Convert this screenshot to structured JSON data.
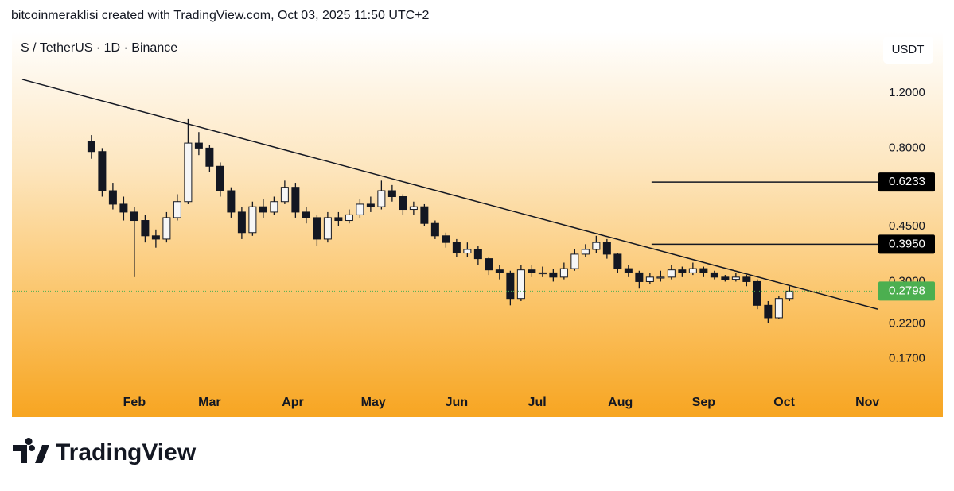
{
  "header": {
    "attribution": "bitcoinmeraklisi created with TradingView.com, Oct 03, 2025 11:50 UTC+2"
  },
  "chart_data": {
    "type": "candlestick",
    "title": "S / TetherUS · 1D · Binance",
    "currency": "USDT",
    "log_scale": true,
    "color": "#131722",
    "x": [
      15,
      19,
      23,
      27,
      31,
      35,
      39,
      43,
      47,
      51,
      55,
      59,
      63,
      67,
      71,
      75,
      79,
      83,
      87,
      91,
      95,
      99,
      103,
      107,
      111,
      115,
      119,
      123,
      127,
      131,
      135,
      139,
      143,
      147,
      151,
      155,
      159,
      163,
      167,
      171,
      175,
      179,
      183,
      187,
      191,
      195,
      199,
      203,
      207,
      211,
      215,
      219,
      223,
      227,
      231,
      235,
      239,
      243,
      247,
      251,
      255,
      259,
      263,
      267,
      271,
      275
    ],
    "open": [
      0.84,
      0.78,
      0.585,
      0.53,
      0.5,
      0.47,
      0.42,
      0.41,
      0.48,
      0.54,
      0.83,
      0.8,
      0.7,
      0.585,
      0.5,
      0.43,
      0.52,
      0.5,
      0.54,
      0.6,
      0.5,
      0.48,
      0.41,
      0.48,
      0.47,
      0.49,
      0.53,
      0.52,
      0.585,
      0.56,
      0.51,
      0.52,
      0.46,
      0.42,
      0.4,
      0.37,
      0.38,
      0.355,
      0.327,
      0.32,
      0.265,
      0.327,
      0.32,
      0.32,
      0.31,
      0.33,
      0.367,
      0.38,
      0.4,
      0.367,
      0.33,
      0.32,
      0.3,
      0.31,
      0.31,
      0.327,
      0.32,
      0.33,
      0.32,
      0.31,
      0.305,
      0.31,
      0.3,
      0.252,
      0.23,
      0.265
    ],
    "high": [
      0.88,
      0.8,
      0.62,
      0.56,
      0.52,
      0.49,
      0.44,
      0.5,
      0.57,
      0.99,
      0.9,
      0.82,
      0.72,
      0.6,
      0.52,
      0.54,
      0.55,
      0.56,
      0.63,
      0.62,
      0.52,
      0.49,
      0.5,
      0.5,
      0.51,
      0.55,
      0.56,
      0.63,
      0.61,
      0.57,
      0.54,
      0.53,
      0.47,
      0.43,
      0.41,
      0.4,
      0.39,
      0.36,
      0.34,
      0.325,
      0.34,
      0.34,
      0.335,
      0.33,
      0.345,
      0.38,
      0.395,
      0.42,
      0.41,
      0.37,
      0.34,
      0.325,
      0.32,
      0.325,
      0.34,
      0.335,
      0.345,
      0.335,
      0.325,
      0.315,
      0.32,
      0.315,
      0.305,
      0.26,
      0.27,
      0.29
    ],
    "low": [
      0.74,
      0.56,
      0.51,
      0.47,
      0.31,
      0.4,
      0.385,
      0.4,
      0.47,
      0.53,
      0.76,
      0.67,
      0.56,
      0.48,
      0.41,
      0.42,
      0.48,
      0.49,
      0.53,
      0.48,
      0.46,
      0.39,
      0.4,
      0.45,
      0.46,
      0.48,
      0.5,
      0.51,
      0.54,
      0.49,
      0.49,
      0.45,
      0.41,
      0.385,
      0.36,
      0.36,
      0.34,
      0.315,
      0.305,
      0.252,
      0.26,
      0.31,
      0.31,
      0.3,
      0.305,
      0.325,
      0.36,
      0.37,
      0.355,
      0.32,
      0.31,
      0.285,
      0.295,
      0.3,
      0.305,
      0.31,
      0.315,
      0.31,
      0.305,
      0.3,
      0.3,
      0.29,
      0.245,
      0.222,
      0.228,
      0.26
    ],
    "close": [
      0.78,
      0.585,
      0.53,
      0.5,
      0.47,
      0.42,
      0.41,
      0.48,
      0.54,
      0.83,
      0.8,
      0.7,
      0.585,
      0.5,
      0.43,
      0.52,
      0.5,
      0.54,
      0.6,
      0.5,
      0.48,
      0.41,
      0.48,
      0.47,
      0.49,
      0.53,
      0.52,
      0.585,
      0.56,
      0.51,
      0.52,
      0.46,
      0.42,
      0.4,
      0.37,
      0.38,
      0.355,
      0.327,
      0.32,
      0.265,
      0.327,
      0.32,
      0.32,
      0.31,
      0.33,
      0.367,
      0.38,
      0.4,
      0.367,
      0.33,
      0.32,
      0.3,
      0.31,
      0.31,
      0.327,
      0.32,
      0.33,
      0.32,
      0.31,
      0.305,
      0.31,
      0.3,
      0.252,
      0.23,
      0.265,
      0.2798
    ],
    "xlim": [
      -14.6,
      306.9
    ],
    "xticks": [
      {
        "value": 31,
        "label": "Feb"
      },
      {
        "value": 59,
        "label": "Mar"
      },
      {
        "value": 90,
        "label": "Apr"
      },
      {
        "value": 120,
        "label": "May"
      },
      {
        "value": 151,
        "label": "Jun"
      },
      {
        "value": 181,
        "label": "Jul"
      },
      {
        "value": 212,
        "label": "Aug"
      },
      {
        "value": 243,
        "label": "Sep"
      },
      {
        "value": 273,
        "label": "Oct"
      },
      {
        "value": 304,
        "label": "Nov"
      }
    ],
    "ylim": [
      0.136,
      1.88
    ],
    "yticks": [
      {
        "value": 1.2,
        "label": "1.2000"
      },
      {
        "value": 0.8,
        "label": "0.8000"
      },
      {
        "value": 0.45,
        "label": "0.4500"
      },
      {
        "value": 0.3,
        "label": "0.3000"
      },
      {
        "value": 0.22,
        "label": "0.2200"
      },
      {
        "value": 0.17,
        "label": "0.1700"
      }
    ],
    "trendline": {
      "x": [
        -10.75,
        307.8
      ],
      "y": [
        1.325,
        0.245
      ],
      "color": "#131722"
    },
    "levels": [
      {
        "value": 0.6233,
        "label": "0.6233",
        "x": [
          223.6,
          307.8
        ]
      },
      {
        "value": 0.395,
        "label": "0.3950",
        "x": [
          223.6,
          307.8
        ]
      }
    ],
    "last_price": {
      "value": 0.2798,
      "label": "0.2798",
      "color": "#4caf50"
    }
  },
  "footer": {
    "logo": "TradingView"
  }
}
